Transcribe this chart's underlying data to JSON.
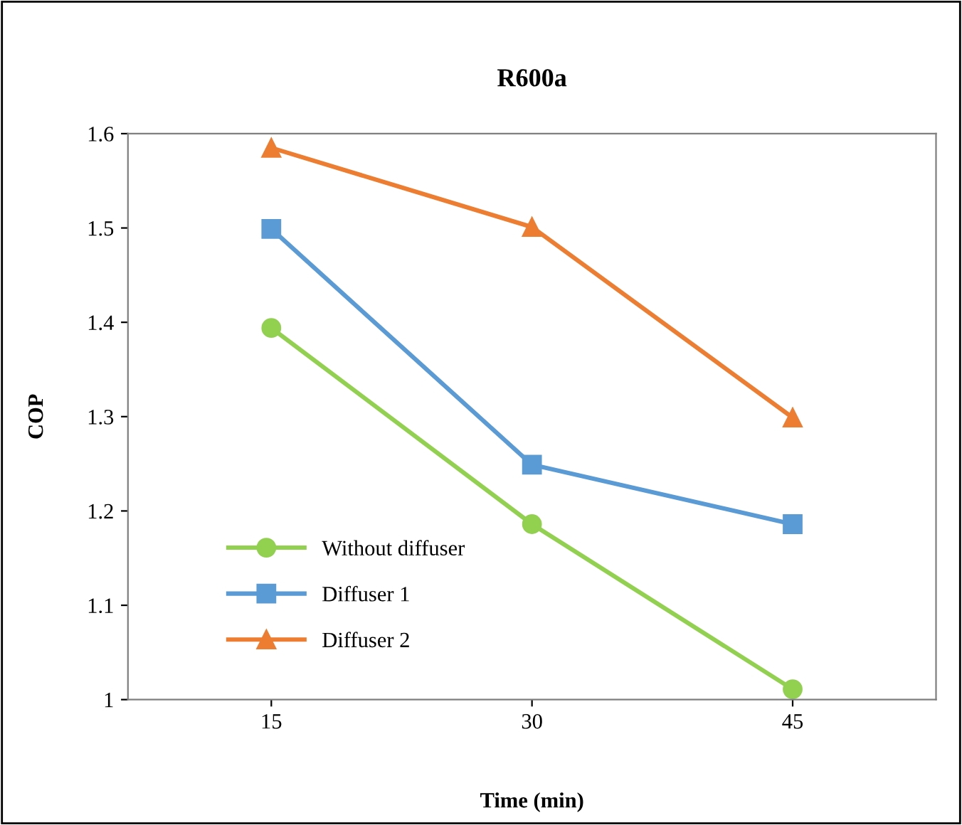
{
  "chart_data": {
    "type": "line",
    "title": "R600a",
    "xlabel": "Time (min)",
    "ylabel": "COP",
    "categories": [
      "15",
      "30",
      "45"
    ],
    "series": [
      {
        "name": "Without diffuser",
        "color": "#92d050",
        "marker": "circle",
        "values": [
          1.394,
          1.186,
          1.011
        ]
      },
      {
        "name": "Diffuser 1",
        "color": "#5b9bd5",
        "marker": "square",
        "values": [
          1.499,
          1.249,
          1.186
        ]
      },
      {
        "name": "Diffuser 2",
        "color": "#ed7d31",
        "marker": "triangle",
        "values": [
          1.585,
          1.501,
          1.299
        ]
      }
    ],
    "ylim": [
      1,
      1.6
    ],
    "yticks": [
      1,
      1.1,
      1.2,
      1.3,
      1.4,
      1.5,
      1.6
    ],
    "grid": false,
    "legend": "bottom left",
    "line_style": "solid"
  }
}
